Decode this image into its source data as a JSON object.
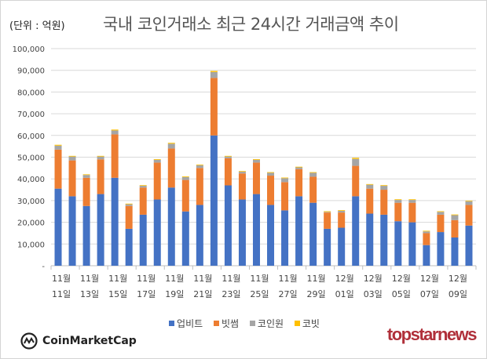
{
  "chart_data": {
    "type": "bar",
    "stacked": true,
    "title": "국내 코인거래소 최근 24시간 거래금액 추이",
    "unit_label": "(단위 : 억원)",
    "ylim": [
      0,
      100000
    ],
    "yticks": [
      "-",
      "10,000",
      "20,000",
      "30,000",
      "40,000",
      "50,000",
      "60,000",
      "70,000",
      "80,000",
      "90,000",
      "100,000"
    ],
    "grid": true,
    "legend_position": "bottom",
    "categories": [
      "11/11",
      "11/12",
      "11/13",
      "11/14",
      "11/15",
      "11/16",
      "11/17",
      "11/18",
      "11/19",
      "11/20",
      "11/21",
      "11/22",
      "11/23",
      "11/24",
      "11/25",
      "11/26",
      "11/27",
      "11/28",
      "11/29",
      "11/30",
      "12/01",
      "12/02",
      "12/03",
      "12/04",
      "12/05",
      "12/06",
      "12/07",
      "12/08",
      "12/09",
      "12/10"
    ],
    "xtick_labels": [
      [
        "11월",
        "11일"
      ],
      [
        "11월",
        "13일"
      ],
      [
        "11월",
        "15일"
      ],
      [
        "11월",
        "17일"
      ],
      [
        "11월",
        "19일"
      ],
      [
        "11월",
        "21일"
      ],
      [
        "11월",
        "23일"
      ],
      [
        "11월",
        "25일"
      ],
      [
        "11월",
        "27일"
      ],
      [
        "11월",
        "29일"
      ],
      [
        "12월",
        "01일"
      ],
      [
        "12월",
        "03일"
      ],
      [
        "12월",
        "05일"
      ],
      [
        "12월",
        "07일"
      ],
      [
        "12월",
        "09일"
      ]
    ],
    "series": [
      {
        "name": "업비트",
        "color": "#4472c4",
        "values": [
          35500,
          32000,
          27500,
          33000,
          40500,
          17000,
          23500,
          30500,
          36000,
          25000,
          28000,
          60000,
          37000,
          30500,
          33000,
          28000,
          25500,
          32000,
          29000,
          17000,
          17500,
          32000,
          24000,
          23500,
          20500,
          20000,
          9500,
          15500,
          13000,
          18500
        ]
      },
      {
        "name": "빗썸",
        "color": "#ed7d31",
        "values": [
          18000,
          16500,
          13000,
          16000,
          20000,
          10500,
          12500,
          17000,
          18000,
          14500,
          17000,
          26500,
          12500,
          12000,
          14500,
          13500,
          13000,
          12500,
          12000,
          7500,
          7000,
          14000,
          11500,
          11500,
          8500,
          9000,
          5500,
          8000,
          8000,
          9500
        ]
      },
      {
        "name": "코인원",
        "color": "#a5a5a5",
        "values": [
          1800,
          1800,
          1300,
          1300,
          1800,
          800,
          800,
          1300,
          2200,
          1300,
          1300,
          2700,
          800,
          800,
          1300,
          1300,
          1800,
          800,
          1800,
          300,
          800,
          3200,
          1800,
          1800,
          1300,
          1300,
          800,
          1300,
          2300,
          1700
        ]
      },
      {
        "name": "코빗",
        "color": "#ffc000",
        "values": [
          400,
          300,
          300,
          300,
          400,
          300,
          300,
          300,
          400,
          300,
          300,
          500,
          300,
          300,
          300,
          300,
          300,
          300,
          300,
          300,
          300,
          500,
          300,
          300,
          300,
          300,
          300,
          300,
          300,
          300
        ]
      }
    ]
  },
  "branding": {
    "left_logo": "CoinMarketCap",
    "right_logo": "topstarnews"
  }
}
